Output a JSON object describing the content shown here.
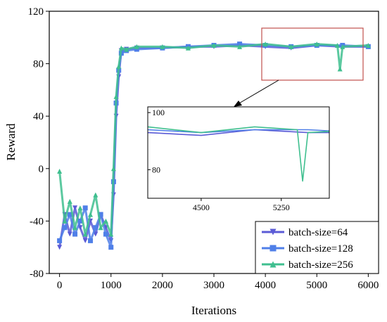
{
  "chart_data": {
    "type": "line",
    "xlabel": "Iterations",
    "ylabel": "Reward",
    "xlim": [
      -200,
      6200
    ],
    "ylim": [
      -80,
      120
    ],
    "xticks": [
      0,
      1000,
      2000,
      3000,
      4000,
      5000,
      6000
    ],
    "yticks": [
      -80,
      -40,
      0,
      40,
      80,
      120
    ],
    "xtick_labels": [
      "0",
      "1000",
      "2000",
      "3000",
      "4000",
      "5000",
      "6000"
    ],
    "ytick_labels": [
      "-80",
      "-40",
      "0",
      "40",
      "80",
      "120"
    ],
    "grid": false,
    "legend_position": "bottom-right",
    "series": [
      {
        "name": "batch-size=64",
        "color": "#5b5bd6",
        "marker": "triangle-down",
        "x": [
          0,
          100,
          200,
          300,
          400,
          500,
          600,
          700,
          800,
          900,
          1000,
          1050,
          1100,
          1150,
          1200,
          1300,
          1500,
          2000,
          2500,
          3000,
          3500,
          4000,
          4500,
          5000,
          5500,
          6000
        ],
        "y": [
          -60,
          -35,
          -50,
          -30,
          -45,
          -55,
          -40,
          -50,
          -35,
          -45,
          -55,
          -20,
          40,
          70,
          90,
          91,
          92,
          92,
          93,
          93,
          94,
          93,
          92,
          94,
          93,
          93
        ]
      },
      {
        "name": "batch-size=128",
        "color": "#4f7fe8",
        "marker": "square",
        "x": [
          0,
          100,
          200,
          300,
          400,
          500,
          600,
          700,
          800,
          900,
          1000,
          1050,
          1100,
          1150,
          1200,
          1300,
          1500,
          2000,
          2500,
          3000,
          3500,
          4000,
          4500,
          5000,
          5500,
          6000
        ],
        "y": [
          -55,
          -45,
          -35,
          -50,
          -40,
          -30,
          -55,
          -45,
          -35,
          -50,
          -60,
          -10,
          50,
          75,
          88,
          90,
          91,
          92,
          93,
          94,
          95,
          94,
          93,
          94,
          94,
          93
        ]
      },
      {
        "name": "batch-size=256",
        "color": "#3fbf8f",
        "marker": "triangle-up",
        "x": [
          0,
          100,
          200,
          300,
          400,
          500,
          600,
          700,
          800,
          900,
          1000,
          1050,
          1100,
          1150,
          1200,
          1300,
          1500,
          2000,
          2500,
          3000,
          3500,
          4000,
          4500,
          5000,
          5400,
          5450,
          5500,
          6000
        ],
        "y": [
          -2,
          -40,
          -25,
          -45,
          -30,
          -50,
          -35,
          -20,
          -45,
          -40,
          -50,
          0,
          55,
          78,
          92,
          91,
          93,
          93,
          92,
          94,
          93,
          95,
          93,
          95,
          94,
          76,
          93,
          94
        ]
      }
    ],
    "inset": {
      "xlim": [
        4000,
        5700
      ],
      "ylim": [
        70,
        102
      ],
      "xticks": [
        4500,
        5250
      ],
      "xtick_labels": [
        "4500",
        "5250"
      ],
      "yticks": [
        80,
        100
      ],
      "ytick_labels": [
        "80",
        "100"
      ],
      "zoom_region": {
        "x": [
          4000,
          5700
        ],
        "y": [
          75,
          115
        ]
      }
    }
  }
}
